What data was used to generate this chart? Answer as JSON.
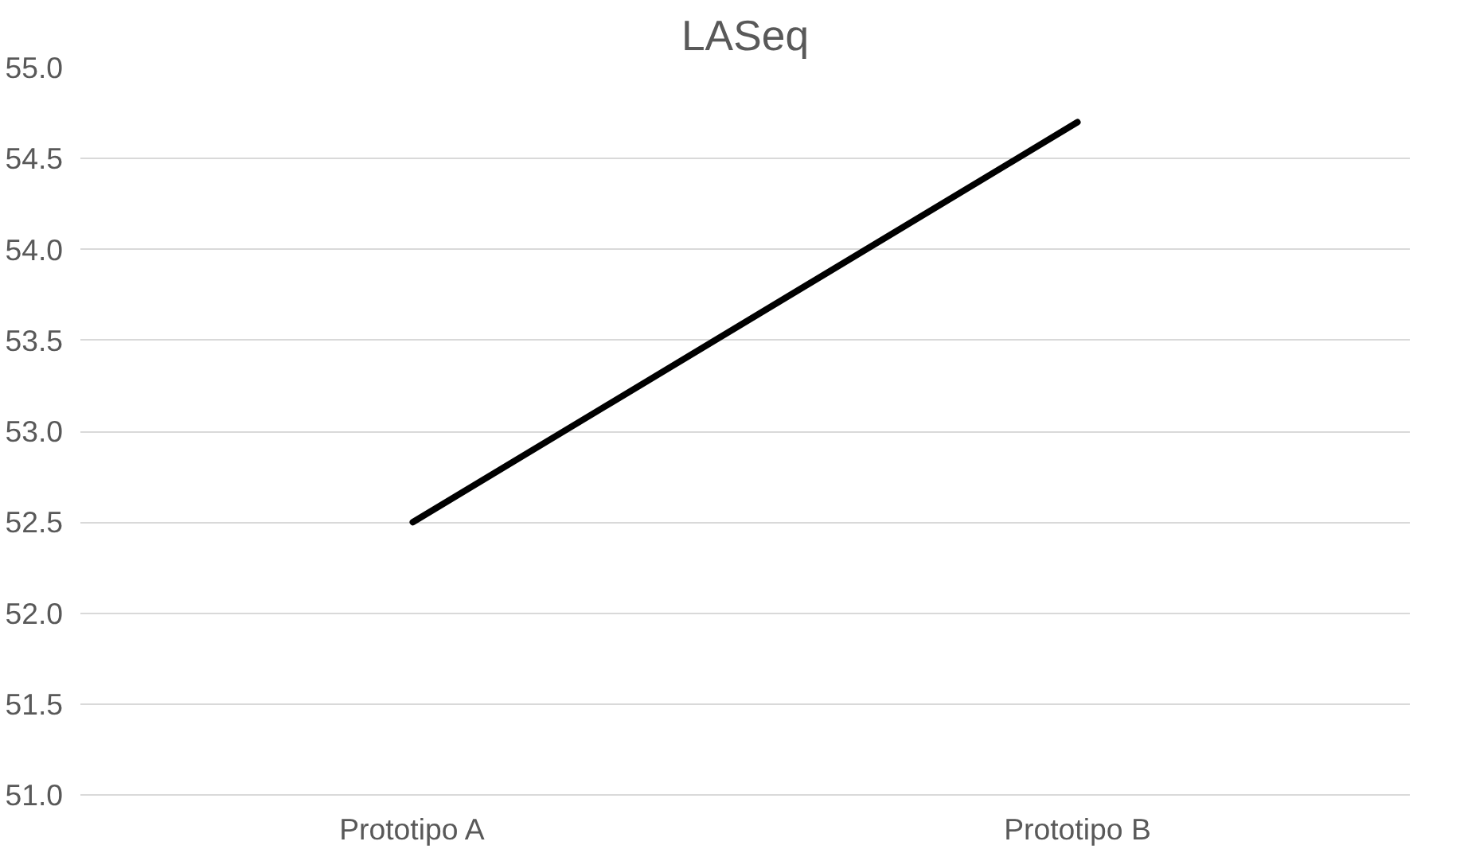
{
  "chart_data": {
    "type": "line",
    "title": "LASeq",
    "categories": [
      "Prototipo A",
      "Prototipo B"
    ],
    "series": [
      {
        "color": "#000000",
        "values": [
          52.5,
          54.7
        ]
      }
    ],
    "ylim": [
      51.0,
      55.0
    ],
    "yticks": [
      {
        "value": 51,
        "label": "51.0"
      },
      {
        "value": 51.5,
        "label": "51.5"
      },
      {
        "value": 52,
        "label": "52.0"
      },
      {
        "value": 52.5,
        "label": "52.5"
      },
      {
        "value": 53,
        "label": "53.0"
      },
      {
        "value": 53.5,
        "label": "53.5"
      },
      {
        "value": 54,
        "label": "54.0"
      },
      {
        "value": 54.5,
        "label": "54.5"
      },
      {
        "value": 55,
        "label": "55.0"
      }
    ],
    "grid": "y",
    "marker": "none",
    "line_style": "solid"
  }
}
